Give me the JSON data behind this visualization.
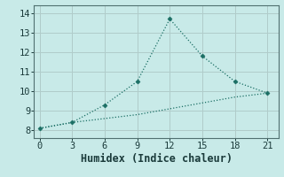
{
  "xlabel": "Humidex (Indice chaleur)",
  "x": [
    0,
    3,
    6,
    9,
    12,
    15,
    18,
    21
  ],
  "line1_y": [
    8.1,
    8.4,
    9.3,
    10.5,
    13.7,
    11.8,
    10.5,
    9.9
  ],
  "line2_y": [
    8.1,
    8.4,
    8.6,
    8.8,
    9.1,
    9.4,
    9.7,
    9.9
  ],
  "line_color": "#1a6e64",
  "marker": "D",
  "marker_size": 2.5,
  "bg_color": "#c8eae8",
  "grid_color": "#b0ccca",
  "xlim": [
    -0.5,
    22
  ],
  "ylim": [
    7.6,
    14.4
  ],
  "xticks": [
    0,
    3,
    6,
    9,
    12,
    15,
    18,
    21
  ],
  "yticks": [
    8,
    9,
    10,
    11,
    12,
    13,
    14
  ],
  "tick_fontsize": 7.5,
  "xlabel_fontsize": 8.5
}
